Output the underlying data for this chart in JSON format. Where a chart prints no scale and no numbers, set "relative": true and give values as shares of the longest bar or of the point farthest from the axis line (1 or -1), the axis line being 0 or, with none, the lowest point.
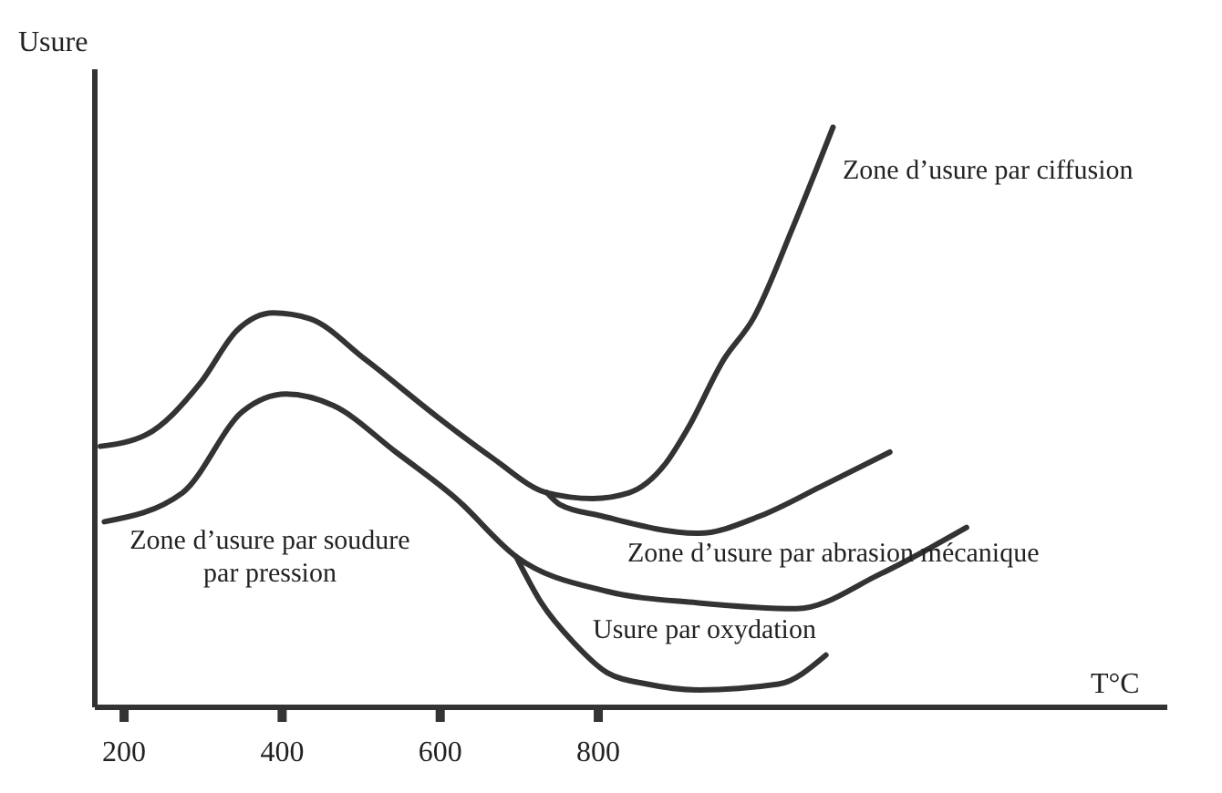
{
  "chart_data": {
    "type": "line",
    "relative": true,
    "ylabel": "Usure",
    "xlabel": "T°C",
    "xlim": [
      163,
      1520
    ],
    "xticks": [
      200,
      400,
      600,
      800
    ],
    "marker": "none",
    "legend": false,
    "series": [
      {
        "color": "#333333",
        "x": [
          170,
          228,
          297,
          343,
          389,
          435,
          505,
          597,
          666,
          735,
          793,
          839,
          885,
          913,
          959,
          996,
          1047,
          1097
        ],
        "values": [
          0.45,
          0.47,
          0.56,
          0.65,
          0.68,
          0.67,
          0.6,
          0.5,
          0.43,
          0.37,
          0.36,
          0.37,
          0.42,
          0.48,
          0.6,
          0.67,
          0.83,
          1
        ]
      },
      {
        "color": "#333333",
        "x": [
          735,
          751,
          804,
          927,
          1005,
          1081,
          1169
        ],
        "values": [
          0.37,
          0.35,
          0.33,
          0.3,
          0.33,
          0.38,
          0.44
        ]
      },
      {
        "color": "#333333",
        "x": [
          175,
          274,
          350,
          405,
          465,
          544,
          620,
          696,
          811,
          927,
          1051,
          1157,
          1266
        ],
        "values": [
          0.32,
          0.37,
          0.51,
          0.54,
          0.52,
          0.44,
          0.36,
          0.26,
          0.2,
          0.18,
          0.17,
          0.23,
          0.31
        ]
      },
      {
        "color": "#333333",
        "x": [
          696,
          728,
          770,
          811,
          862,
          927,
          1028,
          1088
        ],
        "values": [
          0.26,
          0.18,
          0.11,
          0.06,
          0.04,
          0.03,
          0.04,
          0.09
        ]
      }
    ],
    "annotations": [
      "Zone d’usure par ciffusion",
      "Zone d’usure par soudure par pression",
      "Zone d’usure par abrasion mécanique",
      "Usure par oxydation"
    ]
  }
}
